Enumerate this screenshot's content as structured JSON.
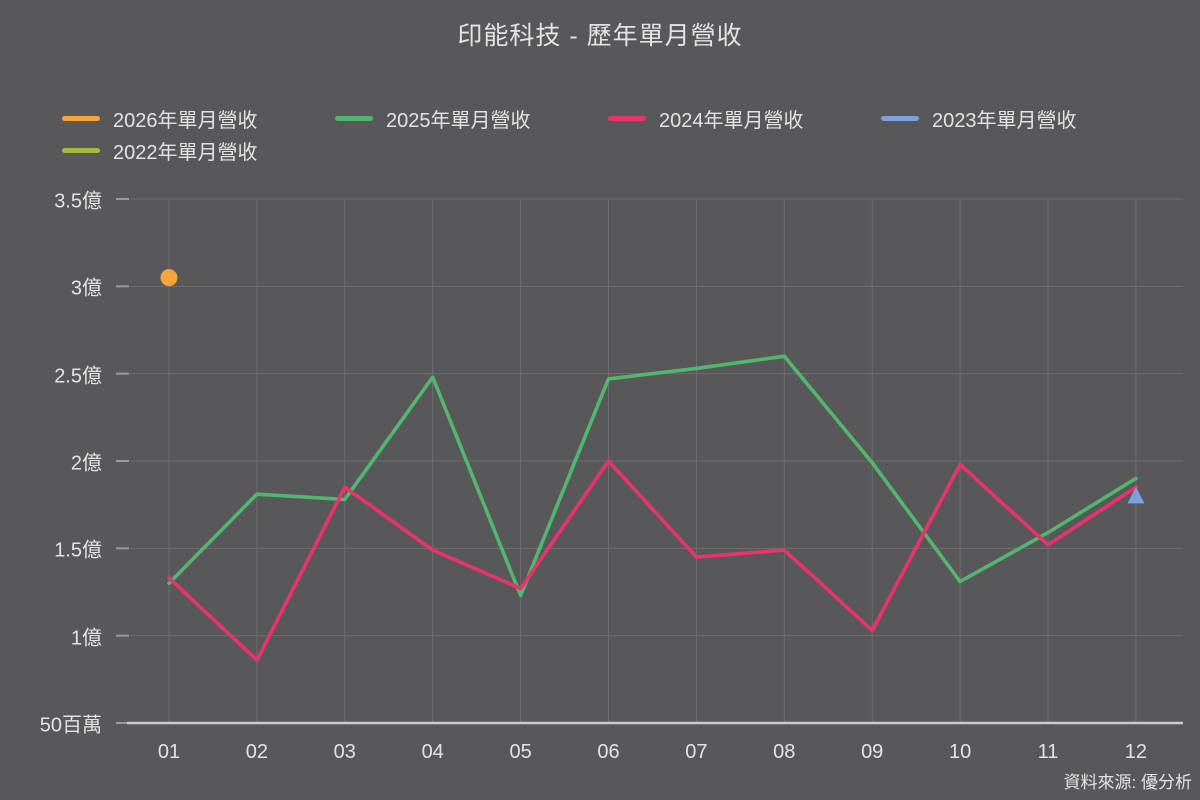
{
  "title": "印能科技 - 歷年單月營收",
  "source": "資料來源: 優分析",
  "colors": {
    "background": "#58585A",
    "gridline": "#6E6E70",
    "axis_line": "#CBCBCB",
    "tick": "#9A9A9A",
    "text": "#E3E3E3"
  },
  "chart_data": {
    "type": "line",
    "title": "印能科技 - 歷年單月營收",
    "xlabel": "",
    "ylabel": "",
    "unit": "億",
    "categories": [
      "01",
      "02",
      "03",
      "04",
      "05",
      "06",
      "07",
      "08",
      "09",
      "10",
      "11",
      "12"
    ],
    "y_ticks": {
      "labels": [
        "3.5億",
        "3億",
        "2.5億",
        "2億",
        "1.5億",
        "1億",
        "50百萬"
      ],
      "values": [
        3.5,
        3.0,
        2.5,
        2.0,
        1.5,
        1.0,
        0.5
      ]
    },
    "ylim": [
      0.5,
      3.5
    ],
    "grid": true,
    "legend_position": "top-left",
    "series": [
      {
        "name": "2026年單月營收",
        "color": "#F5A53A",
        "marker": "circle",
        "values": [
          3.05,
          null,
          null,
          null,
          null,
          null,
          null,
          null,
          null,
          null,
          null,
          null
        ]
      },
      {
        "name": "2025年單月營收",
        "color": "#53B66E",
        "marker": null,
        "values": [
          1.3,
          1.81,
          1.78,
          2.48,
          1.23,
          2.47,
          2.53,
          2.6,
          1.99,
          1.31,
          1.59,
          1.9
        ]
      },
      {
        "name": "2024年單月營收",
        "color": "#EA336C",
        "marker": null,
        "values": [
          1.33,
          0.86,
          1.85,
          1.49,
          1.27,
          2.0,
          1.45,
          1.49,
          1.03,
          1.98,
          1.52,
          1.85
        ]
      },
      {
        "name": "2023年單月營收",
        "color": "#7CA1DB",
        "marker": "triangle",
        "values": [
          null,
          null,
          null,
          null,
          null,
          null,
          null,
          null,
          null,
          null,
          null,
          1.8
        ]
      },
      {
        "name": "2022年單月營收",
        "color": "#A8BA3E",
        "marker": null,
        "values": [
          null,
          null,
          null,
          null,
          null,
          null,
          null,
          null,
          null,
          null,
          null,
          null
        ]
      }
    ]
  }
}
